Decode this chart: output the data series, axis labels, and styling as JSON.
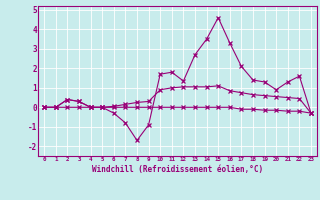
{
  "xlabel": "Windchill (Refroidissement éolien,°C)",
  "background_color": "#c8ecec",
  "grid_color": "#aadddd",
  "line_color": "#990077",
  "x_hours": [
    0,
    1,
    2,
    3,
    4,
    5,
    6,
    7,
    8,
    9,
    10,
    11,
    12,
    13,
    14,
    15,
    16,
    17,
    18,
    19,
    20,
    21,
    22,
    23
  ],
  "series1": [
    0.0,
    0.0,
    0.4,
    0.3,
    0.0,
    0.0,
    -0.3,
    -0.8,
    -1.7,
    -0.9,
    1.7,
    1.8,
    1.35,
    2.7,
    3.5,
    4.6,
    3.3,
    2.1,
    1.4,
    1.3,
    0.9,
    1.3,
    1.6,
    -0.3
  ],
  "series2": [
    0.0,
    0.0,
    0.4,
    0.3,
    0.0,
    0.0,
    0.05,
    0.15,
    0.25,
    0.3,
    0.9,
    1.0,
    1.05,
    1.05,
    1.05,
    1.1,
    0.85,
    0.75,
    0.65,
    0.6,
    0.55,
    0.5,
    0.45,
    -0.3
  ],
  "series3": [
    0.0,
    0.0,
    0.0,
    0.0,
    0.0,
    0.0,
    0.0,
    0.0,
    0.0,
    0.0,
    0.0,
    0.0,
    0.0,
    0.0,
    0.0,
    0.0,
    0.0,
    -0.1,
    -0.1,
    -0.15,
    -0.15,
    -0.2,
    -0.2,
    -0.3
  ],
  "ylim": [
    -2.5,
    5.2
  ],
  "yticks": [
    -2,
    -1,
    0,
    1,
    2,
    3,
    4,
    5
  ],
  "xlim": [
    -0.5,
    23.5
  ],
  "figsize": [
    3.2,
    2.0
  ],
  "dpi": 100
}
